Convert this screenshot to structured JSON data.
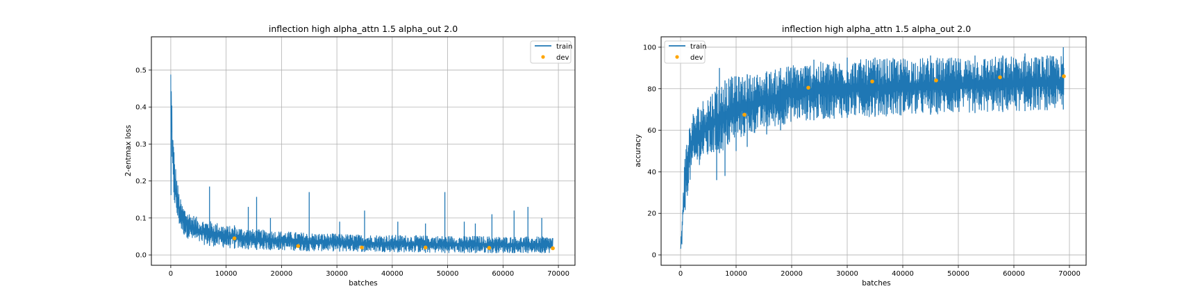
{
  "colors": {
    "train": "#1f77b4",
    "dev": "#ffa500",
    "grid": "#b0b0b0",
    "frame": "#000000",
    "background": "#ffffff"
  },
  "chart_data": [
    {
      "type": "line",
      "title": "inflection high alpha_attn 1.5 alpha_out 2.0",
      "xlabel": "batches",
      "ylabel": "2-entmax loss",
      "xlim": [
        -3500,
        73000
      ],
      "ylim": [
        -0.028,
        0.59
      ],
      "xticks": [
        0,
        10000,
        20000,
        30000,
        40000,
        50000,
        60000,
        70000
      ],
      "yticks": [
        0.0,
        0.1,
        0.2,
        0.3,
        0.4,
        0.5
      ],
      "ytick_labels": [
        "0.0",
        "0.1",
        "0.2",
        "0.3",
        "0.4",
        "0.5"
      ],
      "grid": true,
      "legend_position": "top-right",
      "series": [
        {
          "name": "train",
          "kind": "line",
          "color": "#1f77b4",
          "band": {
            "x": [
              0,
              150,
              400,
              800,
              1200,
              1600,
              2000,
              2500,
              3000,
              4000,
              5000,
              6000,
              8000,
              10000,
              15000,
              20000,
              25000,
              30000,
              35000,
              40000,
              45000,
              50000,
              55000,
              60000,
              65000,
              69000
            ],
            "low": [
              0.04,
              0.23,
              0.16,
              0.12,
              0.09,
              0.075,
              0.06,
              0.05,
              0.045,
              0.035,
              0.03,
              0.027,
              0.022,
              0.018,
              0.014,
              0.012,
              0.01,
              0.009,
              0.008,
              0.007,
              0.006,
              0.005,
              0.005,
              0.005,
              0.005,
              0.005
            ],
            "high": [
              0.57,
              0.46,
              0.33,
              0.25,
              0.2,
              0.16,
              0.14,
              0.13,
              0.12,
              0.11,
              0.1,
              0.095,
              0.09,
              0.08,
              0.07,
              0.065,
              0.06,
              0.058,
              0.055,
              0.055,
              0.053,
              0.052,
              0.052,
              0.05,
              0.05,
              0.05
            ]
          },
          "spikes": [
            [
              7000,
              0.185
            ],
            [
              11500,
              0.08
            ],
            [
              14000,
              0.13
            ],
            [
              15500,
              0.157
            ],
            [
              18000,
              0.1
            ],
            [
              25000,
              0.17
            ],
            [
              30500,
              0.09
            ],
            [
              35000,
              0.12
            ],
            [
              41000,
              0.09
            ],
            [
              46000,
              0.085
            ],
            [
              49500,
              0.17
            ],
            [
              53000,
              0.09
            ],
            [
              55000,
              0.085
            ],
            [
              58000,
              0.11
            ],
            [
              62000,
              0.12
            ],
            [
              64500,
              0.13
            ],
            [
              67000,
              0.1
            ]
          ]
        },
        {
          "name": "dev",
          "kind": "scatter",
          "color": "#ffa500",
          "points": [
            [
              11500,
              0.045
            ],
            [
              23000,
              0.024
            ],
            [
              34500,
              0.02
            ],
            [
              46000,
              0.02
            ],
            [
              57500,
              0.019
            ],
            [
              69000,
              0.018
            ]
          ]
        }
      ]
    },
    {
      "type": "line",
      "title": "inflection high alpha_attn 1.5 alpha_out 2.0",
      "xlabel": "batches",
      "ylabel": "accuracy",
      "xlim": [
        -3500,
        73000
      ],
      "ylim": [
        -5,
        105
      ],
      "xticks": [
        0,
        10000,
        20000,
        30000,
        40000,
        50000,
        60000,
        70000
      ],
      "yticks": [
        0,
        20,
        40,
        60,
        80,
        100
      ],
      "ytick_labels": [
        "0",
        "20",
        "40",
        "60",
        "80",
        "100"
      ],
      "grid": true,
      "legend_position": "top-left",
      "series": [
        {
          "name": "train",
          "kind": "line",
          "color": "#1f77b4",
          "band": {
            "x": [
              0,
              200,
              400,
              700,
              1000,
              1500,
              2000,
              3000,
              4000,
              5000,
              6000,
              7000,
              8000,
              9000,
              10000,
              12000,
              15000,
              18000,
              20000,
              25000,
              30000,
              40000,
              50000,
              60000,
              69000
            ],
            "low": [
              0,
              2,
              8,
              17,
              25,
              32,
              38,
              42,
              45,
              46,
              48,
              49,
              50,
              52,
              55,
              57,
              60,
              62,
              64,
              65,
              66,
              67,
              68,
              69,
              70
            ],
            "high": [
              5,
              15,
              30,
              45,
              55,
              62,
              68,
              72,
              75,
              78,
              80,
              82,
              84,
              86,
              86,
              87,
              88,
              90,
              92,
              93,
              94,
              95,
              95,
              96,
              96
            ]
          },
          "spikes": [
            [
              7000,
              90
            ],
            [
              24000,
              94
            ],
            [
              30000,
              95
            ],
            [
              35000,
              95
            ],
            [
              45000,
              96
            ],
            [
              53000,
              96
            ],
            [
              58000,
              96
            ],
            [
              62000,
              97
            ],
            [
              66000,
              96
            ],
            [
              68900,
              100
            ]
          ],
          "dips": [
            [
              6500,
              36
            ],
            [
              8000,
              38
            ],
            [
              10000,
              50
            ],
            [
              12000,
              52
            ],
            [
              15500,
              58
            ],
            [
              18000,
              60
            ]
          ]
        },
        {
          "name": "dev",
          "kind": "scatter",
          "color": "#ffa500",
          "points": [
            [
              11500,
              67.5
            ],
            [
              23000,
              80.5
            ],
            [
              34500,
              83.5
            ],
            [
              46000,
              84.0
            ],
            [
              57500,
              85.5
            ],
            [
              69000,
              86.0
            ]
          ]
        }
      ]
    }
  ]
}
